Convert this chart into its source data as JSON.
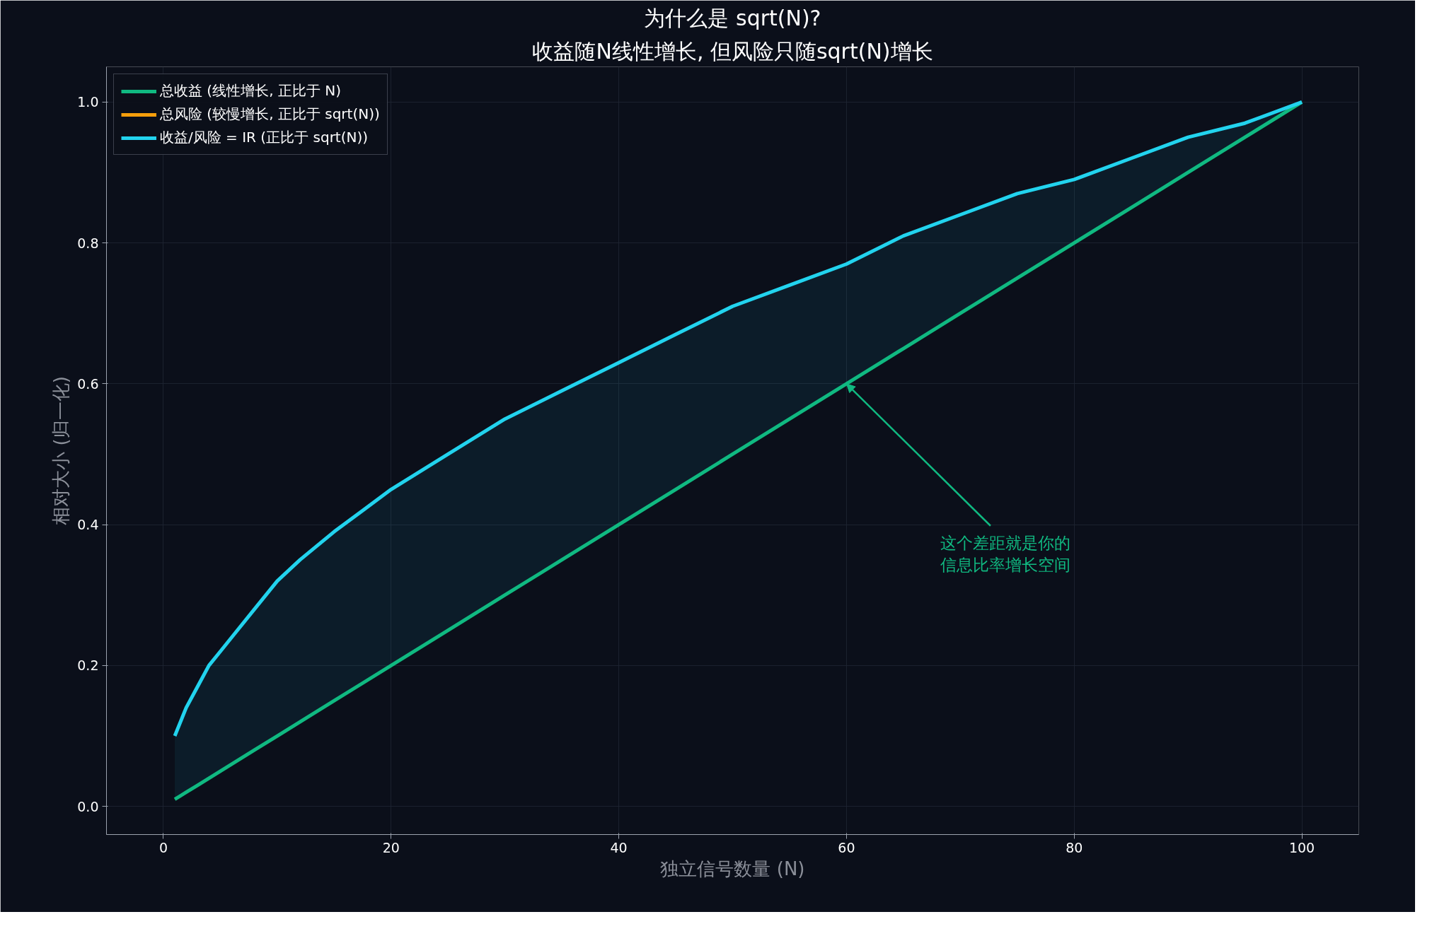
{
  "chart_data": {
    "type": "line",
    "title": "为什么是 sqrt(N)?",
    "subtitle": "收益随N线性增长, 但风险只随sqrt(N)增长",
    "xlabel": "独立信号数量 (N)",
    "ylabel": "相对大小 (归一化)",
    "x": [
      1,
      2,
      3,
      4,
      5,
      6,
      8,
      10,
      12,
      15,
      20,
      25,
      30,
      35,
      40,
      45,
      50,
      55,
      60,
      65,
      70,
      75,
      80,
      85,
      90,
      95,
      100
    ],
    "series": [
      {
        "name": "总收益 (线性增长, 正比于 N)",
        "color": "#10b981",
        "values": [
          0.01,
          0.02,
          0.03,
          0.04,
          0.05,
          0.06,
          0.08,
          0.1,
          0.12,
          0.15,
          0.2,
          0.25,
          0.3,
          0.35,
          0.4,
          0.45,
          0.5,
          0.55,
          0.6,
          0.65,
          0.7,
          0.75,
          0.8,
          0.85,
          0.9,
          0.95,
          1.0
        ]
      },
      {
        "name": "总风险 (较慢增长, 正比于 sqrt(N))",
        "color": "#f59e0b",
        "values": [
          null,
          null,
          null,
          null,
          null,
          null,
          null,
          null,
          null,
          null,
          null,
          null,
          null,
          null,
          null,
          null,
          null,
          null,
          null,
          null,
          null,
          null,
          null,
          null,
          null,
          null,
          null
        ]
      },
      {
        "name": "收益/风险 = IR (正比于 sqrt(N))",
        "color": "#22d3ee",
        "values": [
          0.1,
          0.14,
          0.17,
          0.2,
          0.22,
          0.24,
          0.28,
          0.32,
          0.35,
          0.39,
          0.45,
          0.5,
          0.55,
          0.59,
          0.63,
          0.67,
          0.71,
          0.74,
          0.77,
          0.81,
          0.84,
          0.87,
          0.89,
          0.92,
          0.95,
          0.97,
          1.0
        ],
        "lower": [
          0.01,
          0.02,
          0.03,
          0.04,
          0.05,
          0.06,
          0.08,
          0.1,
          0.12,
          0.15,
          0.2,
          0.25,
          0.3,
          0.35,
          0.4,
          0.45,
          0.5,
          0.55,
          0.6,
          0.65,
          0.7,
          0.75,
          0.8,
          0.85,
          0.9,
          0.95,
          1.0
        ],
        "upper": [
          0.1,
          0.14,
          0.17,
          0.2,
          0.22,
          0.24,
          0.28,
          0.32,
          0.35,
          0.39,
          0.45,
          0.5,
          0.55,
          0.59,
          0.63,
          0.67,
          0.71,
          0.74,
          0.77,
          0.81,
          0.84,
          0.87,
          0.89,
          0.92,
          0.95,
          0.97,
          1.0
        ]
      }
    ],
    "annotations": [
      {
        "text": "这个差距就是你的信息比率增长空间",
        "x": 60,
        "y": 0.6
      }
    ],
    "xlim": [
      -5,
      105
    ],
    "ylim": [
      -0.04,
      1.05
    ],
    "xticks": [
      0,
      20,
      40,
      60,
      80,
      100
    ],
    "yticks": [
      {
        "value": 0,
        "label": "0.0"
      },
      {
        "value": 0.2,
        "label": "0.2"
      },
      {
        "value": 0.4,
        "label": "0.4"
      },
      {
        "value": 0.6,
        "label": "0.6"
      },
      {
        "value": 0.8,
        "label": "0.8"
      },
      {
        "value": 1,
        "label": "1.0"
      }
    ],
    "grid": true,
    "legend": "top left",
    "line_style": "solid",
    "marker": "none"
  }
}
